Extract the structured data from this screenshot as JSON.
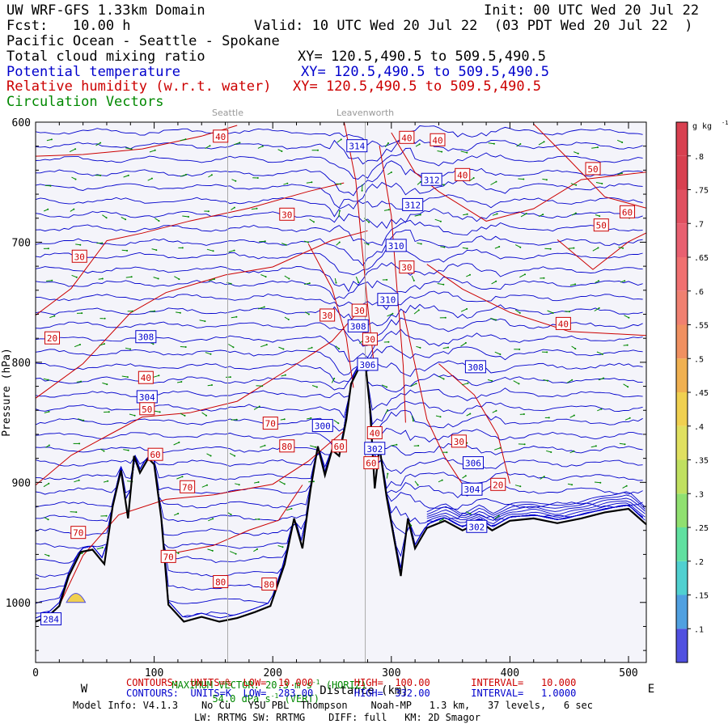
{
  "header": {
    "line1_left": "UW WRF-GFS 1.33km Domain",
    "line1_right": "Init: 00 UTC Wed 20 Jul 22",
    "fcst": "Fcst:   10.00 h",
    "valid": "Valid: 10 UTC Wed 20 Jul 22  (03 PDT Wed 20 Jul 22  )",
    "region": "Pacific Ocean - Seattle - Spokane",
    "field1": "Total cloud mixing ratio",
    "field1_xy": "XY= 120.5,490.5 to 509.5,490.5",
    "field2": "Potential temperature",
    "field2_xy": "XY= 120.5,490.5 to 509.5,490.5",
    "field3": "Relative humidity (w.r.t. water)",
    "field3_xy": "XY= 120.5,490.5 to 509.5,490.5",
    "field4": "Circulation Vectors"
  },
  "colors": {
    "temperature": "#0000cc",
    "humidity": "#cc0000",
    "vectors": "#008800",
    "terrain": "#000000",
    "plot_bg": "#f4f4fa"
  },
  "chart_data": {
    "type": "cross-section",
    "x_ticks": [
      "0",
      "100",
      "200",
      "300",
      "400",
      "500"
    ],
    "y_ticks": [
      "600",
      "700",
      "800",
      "900",
      "1000"
    ],
    "x_range": [
      0,
      515
    ],
    "y_range_hpa": [
      600,
      1050
    ],
    "y_label": "Pressure (hPa)",
    "x_label": "Distance (km)",
    "x_end_labels": [
      "W",
      "E"
    ],
    "location_labels": [
      {
        "name": "Seattle",
        "x_km": 162
      },
      {
        "name": "Leavenworth",
        "x_km": 278
      }
    ],
    "theta_contours_K": [
      284,
      300,
      302,
      304,
      306,
      308,
      310,
      312,
      314
    ],
    "theta_labels": [
      {
        "text": "314",
        "x_km": 271,
        "p": 620
      },
      {
        "text": "312",
        "x_km": 334,
        "p": 648
      },
      {
        "text": "312",
        "x_km": 318,
        "p": 669
      },
      {
        "text": "310",
        "x_km": 304,
        "p": 703
      },
      {
        "text": "310",
        "x_km": 297,
        "p": 748
      },
      {
        "text": "308",
        "x_km": 272,
        "p": 770
      },
      {
        "text": "308",
        "x_km": 93,
        "p": 779
      },
      {
        "text": "306",
        "x_km": 280,
        "p": 802
      },
      {
        "text": "308",
        "x_km": 371,
        "p": 804
      },
      {
        "text": "304",
        "x_km": 94,
        "p": 829
      },
      {
        "text": "300",
        "x_km": 242,
        "p": 853
      },
      {
        "text": "302",
        "x_km": 286,
        "p": 872
      },
      {
        "text": "306",
        "x_km": 369,
        "p": 884
      },
      {
        "text": "304",
        "x_km": 368,
        "p": 906
      },
      {
        "text": "302",
        "x_km": 372,
        "p": 937
      },
      {
        "text": "284",
        "x_km": 13,
        "p": 1014
      }
    ],
    "rh_contours_pct": [
      20,
      30,
      40,
      50,
      60,
      70,
      80
    ],
    "rh_labels": [
      {
        "text": "40",
        "x_km": 156,
        "p": 612
      },
      {
        "text": "40",
        "x_km": 313,
        "p": 613
      },
      {
        "text": "40",
        "x_km": 339,
        "p": 615
      },
      {
        "text": "40",
        "x_km": 360,
        "p": 644
      },
      {
        "text": "50",
        "x_km": 470,
        "p": 639
      },
      {
        "text": "60",
        "x_km": 499,
        "p": 675
      },
      {
        "text": "50",
        "x_km": 477,
        "p": 686
      },
      {
        "text": "30",
        "x_km": 212,
        "p": 677
      },
      {
        "text": "30",
        "x_km": 37,
        "p": 712
      },
      {
        "text": "30",
        "x_km": 313,
        "p": 721
      },
      {
        "text": "30",
        "x_km": 246,
        "p": 761
      },
      {
        "text": "30",
        "x_km": 273,
        "p": 757
      },
      {
        "text": "40",
        "x_km": 445,
        "p": 768
      },
      {
        "text": "20",
        "x_km": 14,
        "p": 780
      },
      {
        "text": "30",
        "x_km": 282,
        "p": 781
      },
      {
        "text": "40",
        "x_km": 93,
        "p": 813
      },
      {
        "text": "50",
        "x_km": 94,
        "p": 839
      },
      {
        "text": "70",
        "x_km": 198,
        "p": 851
      },
      {
        "text": "40",
        "x_km": 286,
        "p": 859
      },
      {
        "text": "80",
        "x_km": 212,
        "p": 870
      },
      {
        "text": "30",
        "x_km": 357,
        "p": 866
      },
      {
        "text": "60",
        "x_km": 101,
        "p": 877
      },
      {
        "text": "60",
        "x_km": 256,
        "p": 870
      },
      {
        "text": "60",
        "x_km": 283,
        "p": 884
      },
      {
        "text": "70",
        "x_km": 128,
        "p": 904
      },
      {
        "text": "20",
        "x_km": 390,
        "p": 902
      },
      {
        "text": "70",
        "x_km": 36,
        "p": 942
      },
      {
        "text": "70",
        "x_km": 112,
        "p": 962
      },
      {
        "text": "80",
        "x_km": 156,
        "p": 983
      },
      {
        "text": "80",
        "x_km": 197,
        "p": 985
      }
    ],
    "terrain_profile": [
      {
        "x_km": 0,
        "p": 1016
      },
      {
        "x_km": 10,
        "p": 1012
      },
      {
        "x_km": 20,
        "p": 1003
      },
      {
        "x_km": 28,
        "p": 978
      },
      {
        "x_km": 38,
        "p": 958
      },
      {
        "x_km": 48,
        "p": 956
      },
      {
        "x_km": 58,
        "p": 968
      },
      {
        "x_km": 65,
        "p": 920
      },
      {
        "x_km": 72,
        "p": 890
      },
      {
        "x_km": 78,
        "p": 930
      },
      {
        "x_km": 83,
        "p": 878
      },
      {
        "x_km": 88,
        "p": 892
      },
      {
        "x_km": 95,
        "p": 880
      },
      {
        "x_km": 100,
        "p": 885
      },
      {
        "x_km": 106,
        "p": 930
      },
      {
        "x_km": 112,
        "p": 1002
      },
      {
        "x_km": 125,
        "p": 1016
      },
      {
        "x_km": 140,
        "p": 1012
      },
      {
        "x_km": 155,
        "p": 1016
      },
      {
        "x_km": 170,
        "p": 1013
      },
      {
        "x_km": 185,
        "p": 1008
      },
      {
        "x_km": 198,
        "p": 1003
      },
      {
        "x_km": 210,
        "p": 968
      },
      {
        "x_km": 218,
        "p": 930
      },
      {
        "x_km": 225,
        "p": 955
      },
      {
        "x_km": 232,
        "p": 905
      },
      {
        "x_km": 238,
        "p": 870
      },
      {
        "x_km": 244,
        "p": 894
      },
      {
        "x_km": 250,
        "p": 873
      },
      {
        "x_km": 256,
        "p": 878
      },
      {
        "x_km": 262,
        "p": 848
      },
      {
        "x_km": 266,
        "p": 818
      },
      {
        "x_km": 272,
        "p": 806
      },
      {
        "x_km": 278,
        "p": 800
      },
      {
        "x_km": 282,
        "p": 838
      },
      {
        "x_km": 286,
        "p": 905
      },
      {
        "x_km": 290,
        "p": 870
      },
      {
        "x_km": 296,
        "p": 912
      },
      {
        "x_km": 302,
        "p": 945
      },
      {
        "x_km": 308,
        "p": 978
      },
      {
        "x_km": 314,
        "p": 930
      },
      {
        "x_km": 320,
        "p": 955
      },
      {
        "x_km": 330,
        "p": 938
      },
      {
        "x_km": 345,
        "p": 932
      },
      {
        "x_km": 360,
        "p": 940
      },
      {
        "x_km": 375,
        "p": 933
      },
      {
        "x_km": 385,
        "p": 940
      },
      {
        "x_km": 400,
        "p": 932
      },
      {
        "x_km": 420,
        "p": 930
      },
      {
        "x_km": 440,
        "p": 934
      },
      {
        "x_km": 460,
        "p": 930
      },
      {
        "x_km": 480,
        "p": 925
      },
      {
        "x_km": 500,
        "p": 922
      },
      {
        "x_km": 515,
        "p": 935
      }
    ],
    "colorbar": {
      "unit": "g kg",
      "unit_exp": "-1",
      "ticks": [
        ".1",
        ".15",
        ".2",
        ".25",
        ".3",
        ".35",
        ".4",
        ".45",
        ".5",
        ".55",
        ".6",
        ".65",
        ".7",
        ".75",
        ".8"
      ],
      "colors": [
        "#5050e0",
        "#50a0e0",
        "#50d0d0",
        "#60e0a0",
        "#90e070",
        "#c0e060",
        "#e0e060",
        "#f0d050",
        "#f0b050",
        "#f09060",
        "#f08070",
        "#f07070",
        "#e86070",
        "#e05060",
        "#d84050"
      ]
    }
  },
  "footer": {
    "max_vector_label": "MAXIMUM VECTOR:",
    "max_vector_horiz": "20.3 m s",
    "max_vector_horiz_exp": "-1",
    "max_vector_horiz_tail": "(HORIZ)",
    "max_vector_vert": "54.0 dPa s",
    "max_vector_vert_exp": "-1",
    "max_vector_vert_tail": "(VERT)",
    "rh_line": "CONTOURS:  UNITS=%  LOW=  10.000       HIGH=  100.00       INTERVAL=   10.000",
    "theta_line": "CONTOURS:  UNITS=K  LOW=  283.00       HIGH=  332.00       INTERVAL=   1.0000",
    "model_info": "Model Info: V4.1.3    No Cu   YSU PBL  Thompson    Noah-MP   1.3 km,   37 levels,   6 sec",
    "model_info2": "LW: RRTMG SW: RRTMG    DIFF: full   KM: 2D Smagor"
  }
}
